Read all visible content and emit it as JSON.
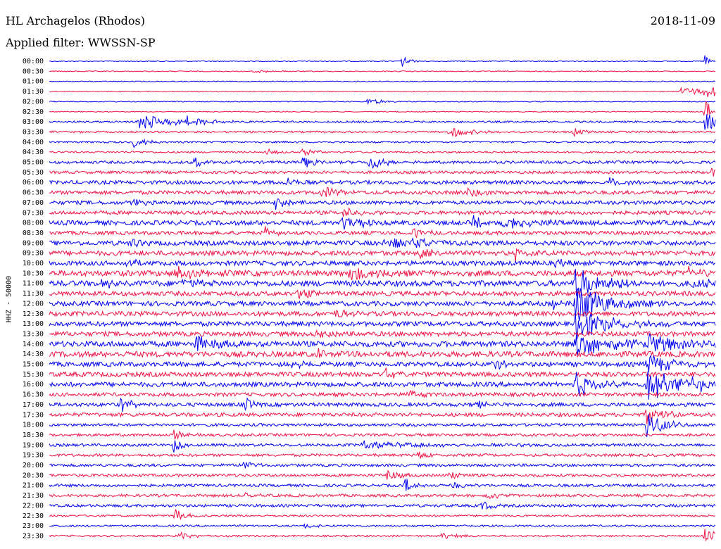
{
  "header": {
    "station": "HL Archagelos (Rhodos)",
    "date": "2018-11-09",
    "filter": "Applied filter: WWSSN-SP"
  },
  "chart_data": {
    "type": "line",
    "title": "HL Archagelos (Rhodos)",
    "subtitle": "Applied filter: WWSSN-SP",
    "date": "2018-11-09",
    "ylabel": "HHZ - 50000",
    "row_labels": [
      "00:00",
      "00:30",
      "01:00",
      "01:30",
      "02:00",
      "02:30",
      "03:00",
      "03:30",
      "04:00",
      "04:30",
      "05:00",
      "05:30",
      "06:00",
      "06:30",
      "07:00",
      "07:30",
      "08:00",
      "08:30",
      "09:00",
      "09:30",
      "10:00",
      "10:30",
      "11:00",
      "11:30",
      "12:00",
      "12:30",
      "13:00",
      "13:30",
      "14:00",
      "14:30",
      "15:00",
      "15:30",
      "16:00",
      "16:30",
      "17:00",
      "17:30",
      "18:00",
      "18:30",
      "19:00",
      "19:30",
      "20:00",
      "20:30",
      "21:00",
      "21:30",
      "22:00",
      "22:30",
      "23:00",
      "23:30"
    ],
    "x_range_min": [
      0,
      30
    ],
    "series_colors": [
      "#0000ee",
      "#ee1144"
    ],
    "noise_amplitude": [
      1,
      1,
      1,
      1,
      1,
      1,
      2,
      2,
      2,
      2,
      3,
      3,
      4,
      4,
      4,
      4,
      5,
      4,
      5,
      5,
      5,
      6,
      6,
      5,
      5,
      5,
      5,
      5,
      6,
      6,
      5,
      5,
      5,
      4,
      4,
      4,
      3,
      3,
      3,
      3,
      3,
      3,
      3,
      3,
      3,
      2,
      2,
      2
    ],
    "events": [
      {
        "row": 0,
        "t": 15.9,
        "amp": 9,
        "dur": 0.3
      },
      {
        "row": 0,
        "t": 29.5,
        "amp": 14,
        "dur": 0.2
      },
      {
        "row": 1,
        "t": 9.2,
        "amp": 4,
        "dur": 0.6
      },
      {
        "row": 3,
        "t": 28.4,
        "amp": 6,
        "dur": 2.0
      },
      {
        "row": 3,
        "t": 29.5,
        "amp": 12,
        "dur": 0.8
      },
      {
        "row": 4,
        "t": 14.3,
        "amp": 6,
        "dur": 0.6
      },
      {
        "row": 5,
        "t": 29.5,
        "amp": 16,
        "dur": 1.0
      },
      {
        "row": 6,
        "t": 4.0,
        "amp": 12,
        "dur": 1.5
      },
      {
        "row": 6,
        "t": 6.2,
        "amp": 7,
        "dur": 1.0
      },
      {
        "row": 6,
        "t": 29.5,
        "amp": 20,
        "dur": 0.4
      },
      {
        "row": 7,
        "t": 18.0,
        "amp": 9,
        "dur": 0.8
      },
      {
        "row": 7,
        "t": 23.6,
        "amp": 6,
        "dur": 0.4
      },
      {
        "row": 8,
        "t": 3.8,
        "amp": 9,
        "dur": 0.5
      },
      {
        "row": 8,
        "t": 30.0,
        "amp": 8,
        "dur": 0.3
      },
      {
        "row": 9,
        "t": 9.7,
        "amp": 6,
        "dur": 0.4
      },
      {
        "row": 9,
        "t": 11.4,
        "amp": 7,
        "dur": 0.5
      },
      {
        "row": 10,
        "t": 6.5,
        "amp": 9,
        "dur": 0.4
      },
      {
        "row": 10,
        "t": 11.4,
        "amp": 9,
        "dur": 0.5
      },
      {
        "row": 10,
        "t": 14.4,
        "amp": 11,
        "dur": 0.7
      },
      {
        "row": 11,
        "t": 29.8,
        "amp": 10,
        "dur": 0.4
      },
      {
        "row": 12,
        "t": 10.7,
        "amp": 8,
        "dur": 0.5
      },
      {
        "row": 12,
        "t": 25.2,
        "amp": 8,
        "dur": 0.5
      },
      {
        "row": 13,
        "t": 12.3,
        "amp": 10,
        "dur": 0.5
      },
      {
        "row": 13,
        "t": 18.8,
        "amp": 8,
        "dur": 0.5
      },
      {
        "row": 14,
        "t": 3.7,
        "amp": 8,
        "dur": 0.4
      },
      {
        "row": 14,
        "t": 10.2,
        "amp": 10,
        "dur": 0.4
      },
      {
        "row": 15,
        "t": 13.2,
        "amp": 9,
        "dur": 0.5
      },
      {
        "row": 16,
        "t": 13.2,
        "amp": 12,
        "dur": 0.8
      },
      {
        "row": 16,
        "t": 19.0,
        "amp": 10,
        "dur": 0.5
      },
      {
        "row": 16,
        "t": 20.3,
        "amp": 14,
        "dur": 1.2
      },
      {
        "row": 17,
        "t": 9.7,
        "amp": 8,
        "dur": 0.4
      },
      {
        "row": 17,
        "t": 16.4,
        "amp": 8,
        "dur": 0.5
      },
      {
        "row": 18,
        "t": 3.7,
        "amp": 9,
        "dur": 0.4
      },
      {
        "row": 18,
        "t": 15.0,
        "amp": 10,
        "dur": 1.2
      },
      {
        "row": 18,
        "t": 16.4,
        "amp": 9,
        "dur": 0.7
      },
      {
        "row": 19,
        "t": 16.6,
        "amp": 10,
        "dur": 0.5
      },
      {
        "row": 19,
        "t": 21.0,
        "amp": 9,
        "dur": 0.5
      },
      {
        "row": 20,
        "t": 3.5,
        "amp": 8,
        "dur": 0.4
      },
      {
        "row": 20,
        "t": 22.7,
        "amp": 8,
        "dur": 0.5
      },
      {
        "row": 21,
        "t": 5.7,
        "amp": 9,
        "dur": 1.2
      },
      {
        "row": 21,
        "t": 13.5,
        "amp": 10,
        "dur": 1.2
      },
      {
        "row": 21,
        "t": 28.8,
        "amp": 9,
        "dur": 0.7
      },
      {
        "row": 22,
        "t": 2.4,
        "amp": 8,
        "dur": 0.4
      },
      {
        "row": 22,
        "t": 6.0,
        "amp": 9,
        "dur": 0.5
      },
      {
        "row": 22,
        "t": 23.7,
        "amp": 26,
        "dur": 1.2
      },
      {
        "row": 22,
        "t": 28.8,
        "amp": 9,
        "dur": 0.8
      },
      {
        "row": 23,
        "t": 11.2,
        "amp": 9,
        "dur": 0.5
      },
      {
        "row": 24,
        "t": 22.7,
        "amp": 8,
        "dur": 0.4
      },
      {
        "row": 24,
        "t": 23.7,
        "amp": 30,
        "dur": 1.4
      },
      {
        "row": 25,
        "t": 12.9,
        "amp": 9,
        "dur": 0.5
      },
      {
        "row": 26,
        "t": 23.7,
        "amp": 24,
        "dur": 1.5
      },
      {
        "row": 27,
        "t": 11.9,
        "amp": 9,
        "dur": 0.5
      },
      {
        "row": 28,
        "t": 6.6,
        "amp": 14,
        "dur": 0.9
      },
      {
        "row": 28,
        "t": 23.7,
        "amp": 20,
        "dur": 1.6
      },
      {
        "row": 28,
        "t": 26.9,
        "amp": 18,
        "dur": 1.2
      },
      {
        "row": 29,
        "t": 12.1,
        "amp": 8,
        "dur": 0.4
      },
      {
        "row": 30,
        "t": 10.8,
        "amp": 9,
        "dur": 0.4
      },
      {
        "row": 30,
        "t": 19.9,
        "amp": 9,
        "dur": 0.5
      },
      {
        "row": 30,
        "t": 26.9,
        "amp": 14,
        "dur": 1.2
      },
      {
        "row": 31,
        "t": 15.1,
        "amp": 8,
        "dur": 0.4
      },
      {
        "row": 32,
        "t": 23.7,
        "amp": 20,
        "dur": 0.8
      },
      {
        "row": 32,
        "t": 26.9,
        "amp": 24,
        "dur": 1.5
      },
      {
        "row": 32,
        "t": 28.9,
        "amp": 6,
        "dur": 0.8
      },
      {
        "row": 33,
        "t": 16.1,
        "amp": 9,
        "dur": 0.4
      },
      {
        "row": 34,
        "t": 3.2,
        "amp": 12,
        "dur": 0.4
      },
      {
        "row": 34,
        "t": 8.8,
        "amp": 10,
        "dur": 0.4
      },
      {
        "row": 34,
        "t": 19.2,
        "amp": 9,
        "dur": 0.4
      },
      {
        "row": 35,
        "t": 26.9,
        "amp": 14,
        "dur": 0.7
      },
      {
        "row": 36,
        "t": 26.9,
        "amp": 20,
        "dur": 0.8
      },
      {
        "row": 37,
        "t": 5.6,
        "amp": 8,
        "dur": 0.4
      },
      {
        "row": 38,
        "t": 5.6,
        "amp": 11,
        "dur": 0.4
      },
      {
        "row": 38,
        "t": 14.0,
        "amp": 5,
        "dur": 3.2
      },
      {
        "row": 39,
        "t": 16.6,
        "amp": 8,
        "dur": 0.4
      },
      {
        "row": 40,
        "t": 8.6,
        "amp": 10,
        "dur": 0.4
      },
      {
        "row": 41,
        "t": 15.2,
        "amp": 10,
        "dur": 0.5
      },
      {
        "row": 41,
        "t": 18.0,
        "amp": 8,
        "dur": 0.4
      },
      {
        "row": 42,
        "t": 16.0,
        "amp": 11,
        "dur": 0.5
      },
      {
        "row": 42,
        "t": 18.2,
        "amp": 8,
        "dur": 0.4
      },
      {
        "row": 43,
        "t": 8.8,
        "amp": 8,
        "dur": 0.4
      },
      {
        "row": 43,
        "t": 19.7,
        "amp": 9,
        "dur": 0.4
      },
      {
        "row": 44,
        "t": 19.5,
        "amp": 8,
        "dur": 0.4
      },
      {
        "row": 45,
        "t": 5.6,
        "amp": 12,
        "dur": 0.4
      },
      {
        "row": 46,
        "t": 11.5,
        "amp": 5,
        "dur": 0.4
      },
      {
        "row": 47,
        "t": 5.8,
        "amp": 8,
        "dur": 0.5
      },
      {
        "row": 47,
        "t": 17.7,
        "amp": 7,
        "dur": 0.5
      },
      {
        "row": 47,
        "t": 29.5,
        "amp": 12,
        "dur": 0.5
      }
    ]
  }
}
